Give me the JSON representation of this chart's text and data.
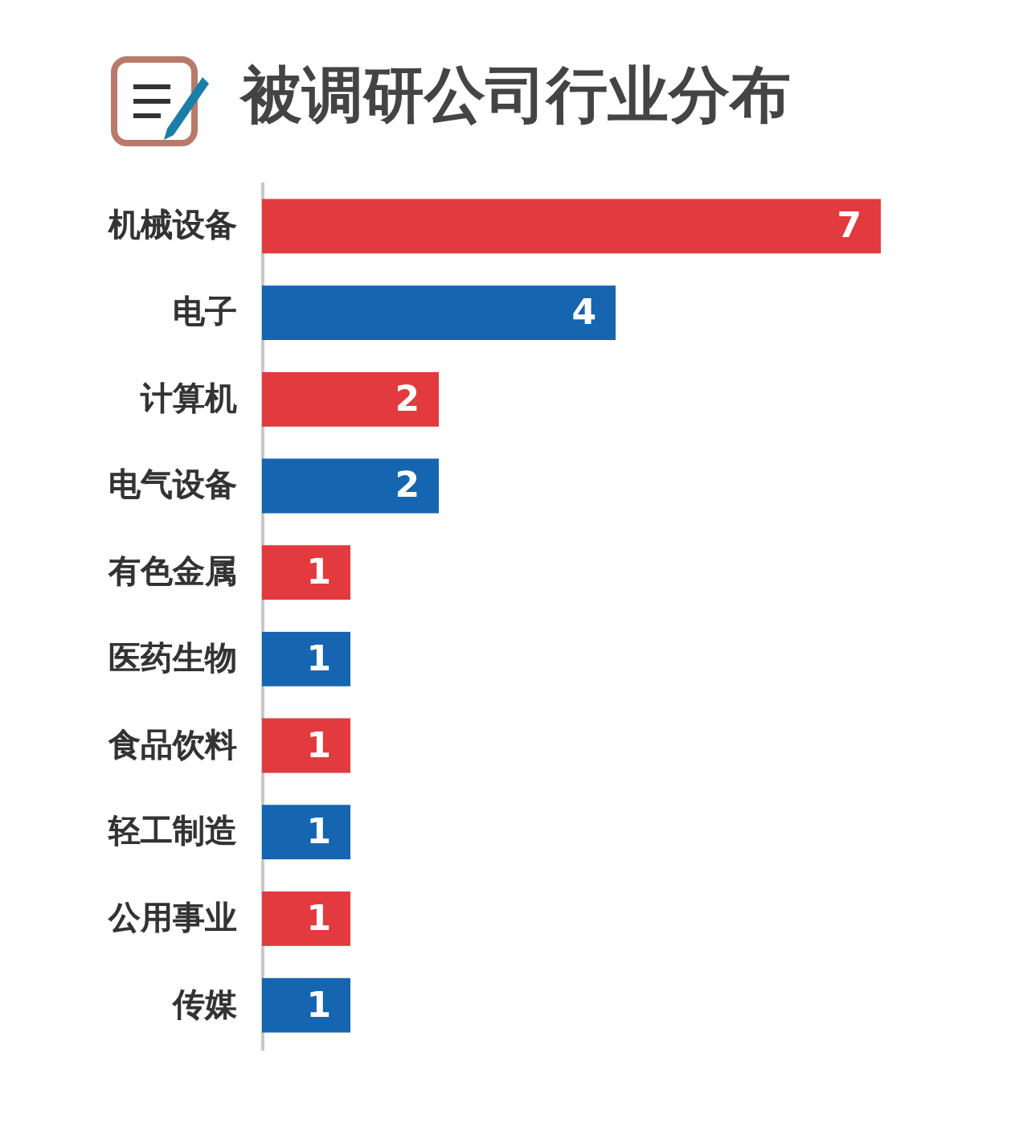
{
  "chart_data": {
    "type": "bar",
    "orientation": "horizontal",
    "title": "被调研公司行业分布",
    "categories": [
      "机械设备",
      "电子",
      "计算机",
      "电气设备",
      "有色金属",
      "医药生物",
      "食品饮料",
      "轻工制造",
      "公用事业",
      "传媒"
    ],
    "values": [
      7,
      4,
      2,
      2,
      1,
      1,
      1,
      1,
      1,
      1
    ],
    "colors": [
      "#e23a3f",
      "#1565b0",
      "#e23a3f",
      "#1565b0",
      "#e23a3f",
      "#1565b0",
      "#e23a3f",
      "#1565b0",
      "#e23a3f",
      "#1565b0"
    ],
    "data_labels": true,
    "grid": false,
    "legend": false
  }
}
